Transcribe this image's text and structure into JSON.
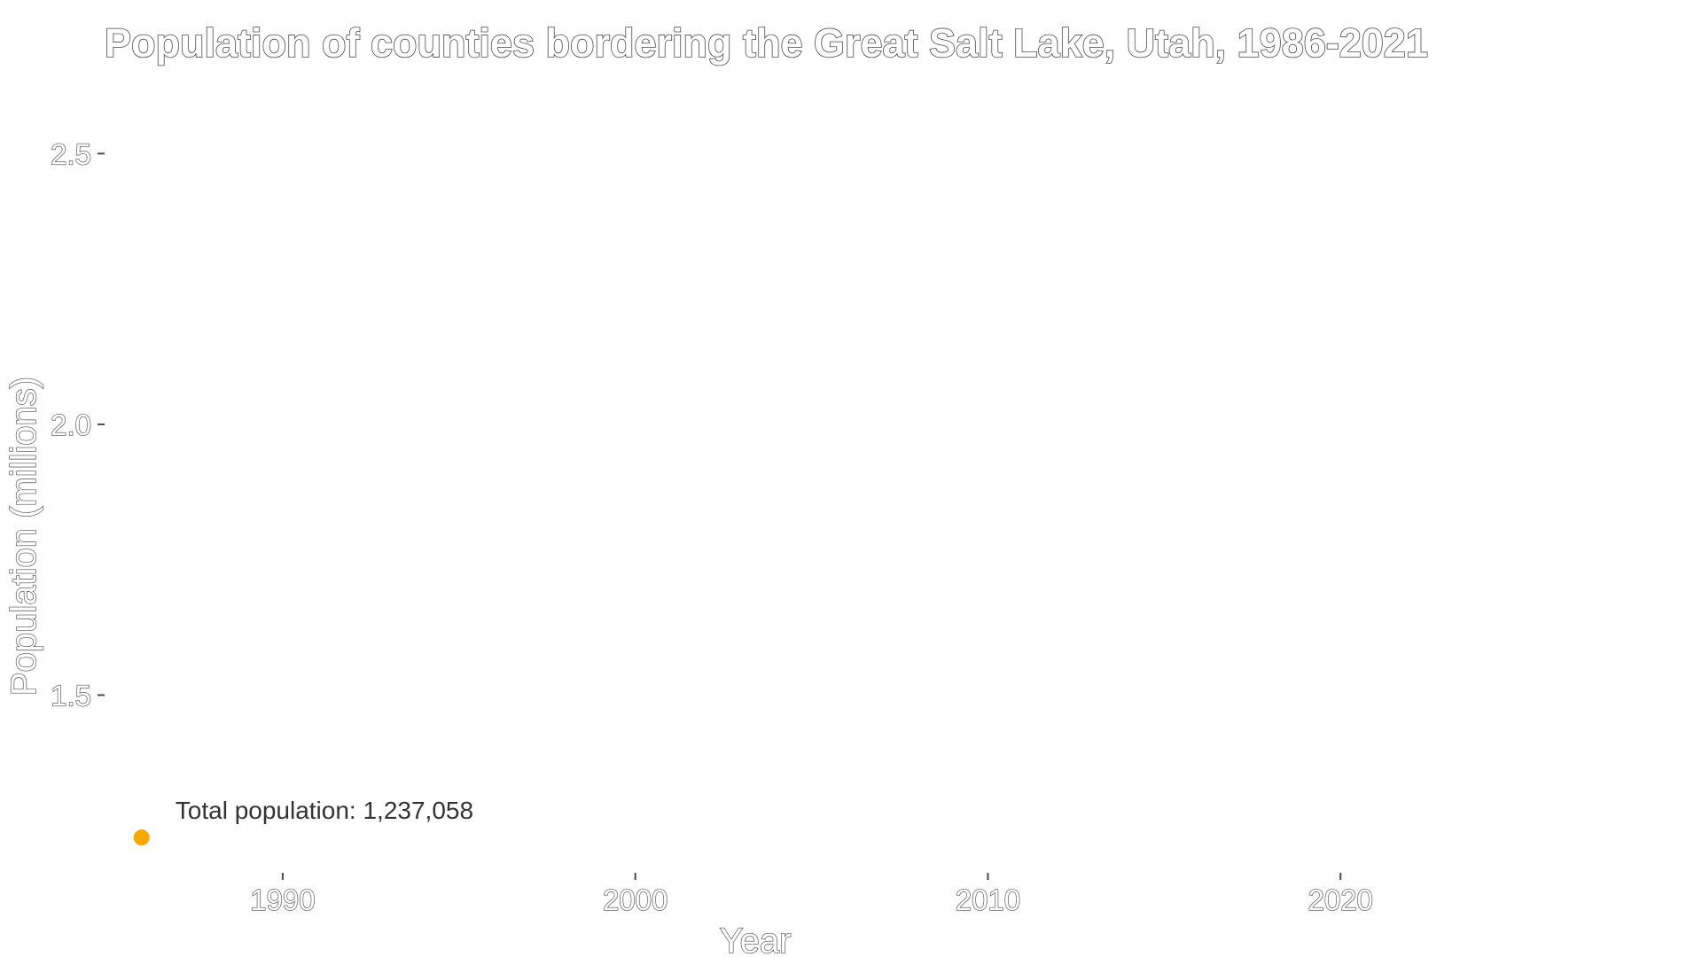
{
  "chart_data": {
    "type": "line",
    "title": "Population of counties bordering the Great Salt Lake, Utah, 1986-2021",
    "xlabel": "Year",
    "ylabel": "Population (millions)",
    "xlim": [
      1985,
      2030
    ],
    "ylim": [
      1.18,
      2.62
    ],
    "x_ticks": [
      1990,
      2000,
      2010,
      2020
    ],
    "x_tick_labels": [
      "1990",
      "2000",
      "2010",
      "2020"
    ],
    "y_ticks": [
      1.5,
      2.0,
      2.5
    ],
    "y_tick_labels": [
      "1.5",
      "2.0",
      "2.5"
    ],
    "grid": false,
    "legend": "none",
    "series": [
      {
        "color": "#F5A800",
        "points": [
          {
            "x": 1986,
            "y": 1.237058
          }
        ]
      }
    ],
    "annotation": {
      "text": "Total population: 1,237,058",
      "x": 1986,
      "y": 1.237058
    }
  }
}
